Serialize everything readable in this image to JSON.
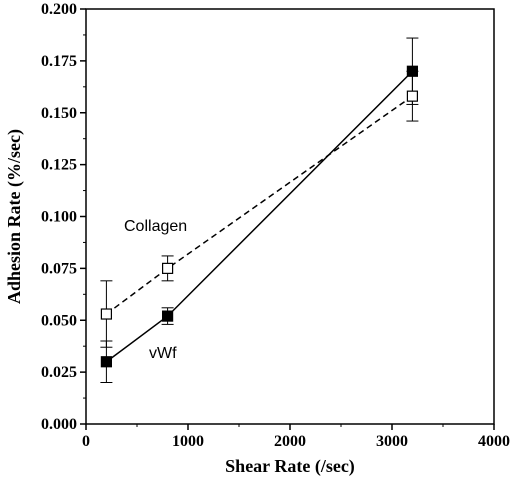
{
  "chart_data": {
    "type": "line",
    "title": "",
    "xlabel": "Shear Rate (/sec)",
    "ylabel": "Adhesion Rate (%/sec)",
    "xlim": [
      0,
      4000
    ],
    "ylim": [
      0,
      0.2
    ],
    "x_ticks": [
      "0",
      "1000",
      "2000",
      "3000",
      "4000"
    ],
    "y_ticks": [
      "0.000",
      "0.025",
      "0.050",
      "0.075",
      "0.100",
      "0.125",
      "0.150",
      "0.175",
      "0.200"
    ],
    "grid": false,
    "legend": "none",
    "series": [
      {
        "name": "Collagen",
        "line_style": "dashed",
        "marker": "open-square",
        "x": [
          200,
          800,
          3200
        ],
        "y": [
          0.053,
          0.075,
          0.158
        ],
        "error": [
          0.016,
          0.006,
          0.012
        ]
      },
      {
        "name": "vWf",
        "line_style": "solid",
        "marker": "filled-square",
        "x": [
          200,
          800,
          3200
        ],
        "y": [
          0.03,
          0.052,
          0.17
        ],
        "error": [
          0.01,
          0.004,
          0.016
        ]
      }
    ]
  }
}
